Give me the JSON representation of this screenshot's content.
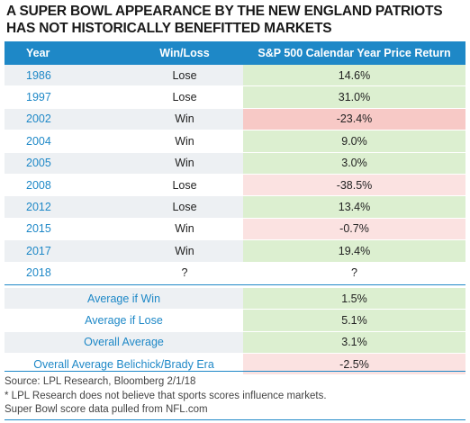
{
  "title": "A SUPER BOWL APPEARANCE BY THE NEW ENGLAND PATRIOTS HAS NOT HISTORICALLY BENEFITTED MARKETS",
  "columns": [
    "Year",
    "Win/Loss",
    "S&P 500 Calendar Year Price Return"
  ],
  "rows": [
    {
      "year": "1986",
      "result": "Lose",
      "return": "14.6%",
      "tone": "pos"
    },
    {
      "year": "1997",
      "result": "Lose",
      "return": "31.0%",
      "tone": "pos"
    },
    {
      "year": "2002",
      "result": "Win",
      "return": "-23.4%",
      "tone": "neg"
    },
    {
      "year": "2004",
      "result": "Win",
      "return": "9.0%",
      "tone": "pos"
    },
    {
      "year": "2005",
      "result": "Win",
      "return": "3.0%",
      "tone": "pos"
    },
    {
      "year": "2008",
      "result": "Lose",
      "return": "-38.5%",
      "tone": "negl"
    },
    {
      "year": "2012",
      "result": "Lose",
      "return": "13.4%",
      "tone": "pos"
    },
    {
      "year": "2015",
      "result": "Win",
      "return": "-0.7%",
      "tone": "negl"
    },
    {
      "year": "2017",
      "result": "Win",
      "return": "19.4%",
      "tone": "pos"
    },
    {
      "year": "2018",
      "result": "?",
      "return": "?",
      "tone": "neu"
    }
  ],
  "summary": [
    {
      "label": "Average if Win",
      "value": "1.5%",
      "tone": "pos"
    },
    {
      "label": "Average if Lose",
      "value": "5.1%",
      "tone": "pos"
    },
    {
      "label": "Overall Average",
      "value": "3.1%",
      "tone": "pos"
    },
    {
      "label": "Overall Average Belichick/Brady Era",
      "value": "-2.5%",
      "tone": "negl"
    }
  ],
  "footer": [
    "Source: LPL Research, Bloomberg 2/1/18",
    "* LPL Research does not believe that sports scores influence markets.",
    "Super Bowl score data pulled from NFL.com"
  ],
  "colors": {
    "header_blue": "#1e88c7",
    "positive_green": "#dcefd0",
    "negative_red": "#f7c9c6",
    "negative_light": "#fbe2e1",
    "row_gray": "#edf0f3"
  }
}
